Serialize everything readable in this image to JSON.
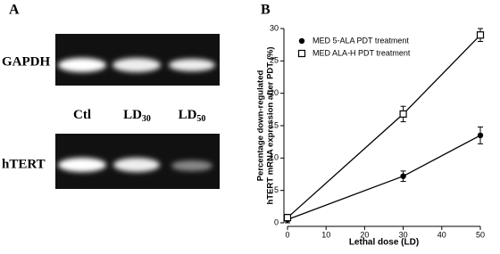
{
  "panel_a": {
    "panel_label": "A",
    "rows": [
      "GAPDH",
      "hTERT"
    ],
    "lanes": [
      {
        "main": "Ctl"
      },
      {
        "main": "LD",
        "sub": "30"
      },
      {
        "main": "LD",
        "sub": "50"
      }
    ]
  },
  "chart_data": {
    "type": "scatter",
    "panel_label": "B",
    "xlabel": "Lethal dose (LD)",
    "ylabel": [
      "Percentage down-regulated",
      "hTERT mRNA expression after PDT (%)"
    ],
    "xlim": [
      0,
      50
    ],
    "xticks": [
      0,
      10,
      20,
      30,
      40,
      50
    ],
    "ylim": [
      0,
      30
    ],
    "yticks": [
      0,
      5,
      10,
      15,
      20,
      25,
      30
    ],
    "legend": "upper left",
    "series": [
      {
        "name": "MED 5-ALA PDT treatment",
        "color": "#000000",
        "marker": "circle",
        "x": [
          0,
          30,
          50
        ],
        "values": [
          0.5,
          7.2,
          13.5
        ],
        "errors": [
          0.5,
          0.8,
          1.3
        ]
      },
      {
        "name": "MED ALA-H PDT treatment",
        "color": "#000000",
        "marker": "square",
        "x": [
          0,
          30,
          50
        ],
        "values": [
          0.8,
          16.8,
          29
        ],
        "errors": [
          0.5,
          1.2,
          1.0
        ]
      }
    ]
  }
}
